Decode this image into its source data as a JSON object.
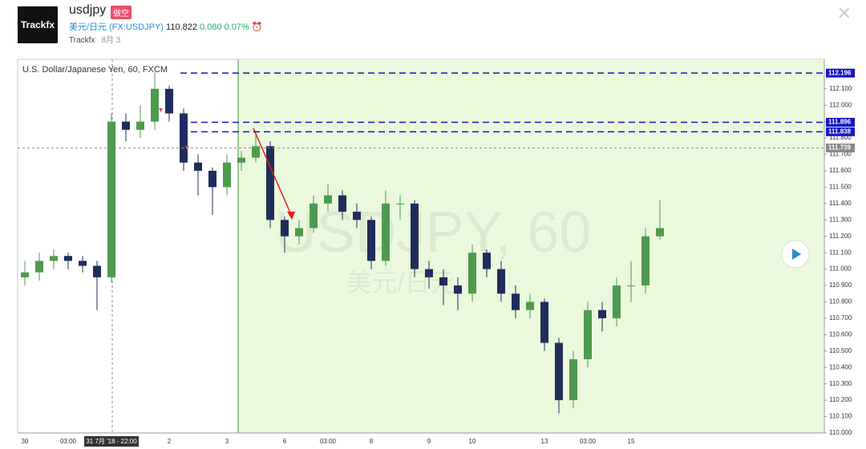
{
  "header": {
    "logo": "Trackfx",
    "symbol": "usdjpy",
    "badge": "做空",
    "pair_name": "美元/日元",
    "ticker": "(FX:USDJPY)",
    "price": "110.822",
    "change": "0.080",
    "change_pct": "0.07%",
    "author": "Trackfx",
    "date": "8月 3"
  },
  "chart_data": {
    "type": "candlestick",
    "title": "U.S. Dollar/Japanese Yen, 60, FXCM",
    "watermark": "USDJPY, 60",
    "watermark_sub": "美元/日元",
    "categories": [
      "30",
      null,
      null,
      "03:00",
      null,
      null,
      "31 7月 '18 - 22:00",
      null,
      null,
      null,
      "2",
      null,
      null,
      null,
      "3",
      null,
      null,
      null,
      "6",
      null,
      null,
      "03:00",
      null,
      null,
      "8",
      null,
      null,
      null,
      "9",
      null,
      null,
      "10",
      null,
      null,
      null,
      null,
      "13",
      null,
      null,
      "03:00",
      null,
      null,
      "15",
      null,
      null
    ],
    "open": [
      110.95,
      110.98,
      111.05,
      111.08,
      111.05,
      111.02,
      110.95,
      111.9,
      111.85,
      111.9,
      112.1,
      111.95,
      111.65,
      111.6,
      111.5,
      111.65,
      111.68,
      111.75,
      111.3,
      111.2,
      111.25,
      111.4,
      111.45,
      111.35,
      111.3,
      111.05,
      111.4,
      111.4,
      111.0,
      110.95,
      110.9,
      110.85,
      111.1,
      111.0,
      110.85,
      110.75,
      110.8,
      110.55,
      110.2,
      110.45,
      110.75,
      110.7,
      110.9,
      110.9,
      111.2
    ],
    "high": [
      111.05,
      111.1,
      111.12,
      111.1,
      111.08,
      111.05,
      111.95,
      111.95,
      112.0,
      112.2,
      112.12,
      111.98,
      111.7,
      111.62,
      111.7,
      111.72,
      111.84,
      111.78,
      111.32,
      111.3,
      111.45,
      111.52,
      111.48,
      111.4,
      111.32,
      111.48,
      111.45,
      111.42,
      111.05,
      111.0,
      110.95,
      111.15,
      111.12,
      111.05,
      110.9,
      110.85,
      110.82,
      110.58,
      110.5,
      110.8,
      110.8,
      110.95,
      111.05,
      111.25,
      111.42
    ],
    "low": [
      110.9,
      110.93,
      111.0,
      111.0,
      110.98,
      110.75,
      110.92,
      111.78,
      111.8,
      111.85,
      111.9,
      111.6,
      111.45,
      111.33,
      111.45,
      111.6,
      111.65,
      111.25,
      111.1,
      111.15,
      111.22,
      111.35,
      111.3,
      111.25,
      111.0,
      111.02,
      111.3,
      110.95,
      110.88,
      110.78,
      110.75,
      110.8,
      110.95,
      110.8,
      110.7,
      110.7,
      110.5,
      110.12,
      110.15,
      110.4,
      110.62,
      110.65,
      110.8,
      110.85,
      111.18
    ],
    "close": [
      110.98,
      111.05,
      111.08,
      111.05,
      111.02,
      110.95,
      111.9,
      111.85,
      111.9,
      112.1,
      111.95,
      111.65,
      111.6,
      111.5,
      111.65,
      111.68,
      111.75,
      111.3,
      111.2,
      111.25,
      111.4,
      111.45,
      111.35,
      111.3,
      111.05,
      111.4,
      111.4,
      111.0,
      110.95,
      110.9,
      110.85,
      111.1,
      111.0,
      110.85,
      110.75,
      110.8,
      110.55,
      110.2,
      110.45,
      110.75,
      110.7,
      110.9,
      110.9,
      111.2,
      111.25
    ],
    "up_color": "#4e9a4e",
    "down_color": "#1f2d5a",
    "ylim": [
      110.0,
      112.28
    ],
    "yticks": [
      {
        "value": 110.0,
        "label": "110.000"
      },
      {
        "value": 110.1,
        "label": "110.100"
      },
      {
        "value": 110.2,
        "label": "110.200"
      },
      {
        "value": 110.3,
        "label": "110.300"
      },
      {
        "value": 110.4,
        "label": "110.400"
      },
      {
        "value": 110.5,
        "label": "110.500"
      },
      {
        "value": 110.6,
        "label": "110.600"
      },
      {
        "value": 110.7,
        "label": "110.700"
      },
      {
        "value": 110.8,
        "label": "110.800"
      },
      {
        "value": 110.9,
        "label": "110.900"
      },
      {
        "value": 111.0,
        "label": "111.000"
      },
      {
        "value": 111.1,
        "label": "111.100"
      },
      {
        "value": 111.2,
        "label": "111.200"
      },
      {
        "value": 111.3,
        "label": "111.300"
      },
      {
        "value": 111.4,
        "label": "111.400"
      },
      {
        "value": 111.5,
        "label": "111.500"
      },
      {
        "value": 111.6,
        "label": "111.600"
      },
      {
        "value": 111.7,
        "label": "111.700"
      },
      {
        "value": 111.8,
        "label": "111.800"
      },
      {
        "value": 111.9,
        "label": "111.900"
      },
      {
        "value": 112.0,
        "label": "112.000"
      },
      {
        "value": 112.1,
        "label": "112.100"
      }
    ],
    "levels": [
      {
        "value": 112.196,
        "color": "#1515c8"
      },
      {
        "value": 111.896,
        "color": "#1515c8"
      },
      {
        "value": 111.838,
        "color": "#1515c8"
      },
      {
        "value": 111.739,
        "color": "#888888"
      }
    ]
  }
}
